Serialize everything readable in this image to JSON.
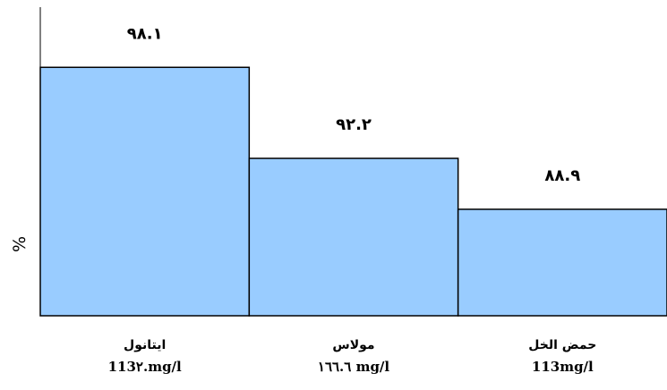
{
  "chart_data": {
    "type": "bar",
    "categories": [
      "ايتانول",
      "مولاس",
      "حمض الخل"
    ],
    "category_sublabels": [
      "113٢.mg/l",
      "١٦٦.٦ mg/l",
      "113mg/l"
    ],
    "values": [
      98.1,
      92.2,
      88.9
    ],
    "data_labels": [
      "٩٨.١",
      "٩٢.٢",
      "٨٨.٩"
    ],
    "ylabel": "%",
    "ylim": [
      82,
      102
    ],
    "grid": false,
    "legend": "none",
    "bar_color": "#99ccff",
    "edge_color": "#000000"
  }
}
